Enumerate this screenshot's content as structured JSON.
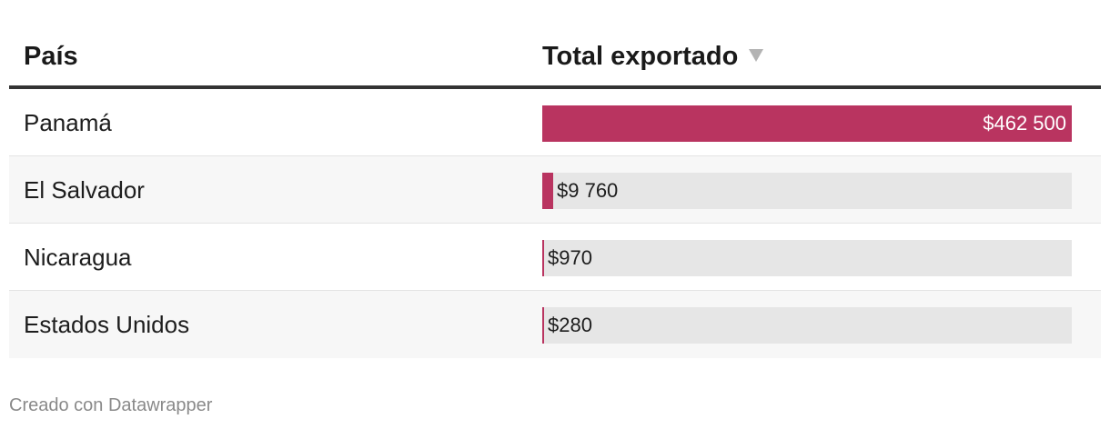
{
  "table": {
    "headers": {
      "country": "País",
      "total": "Total exportado"
    },
    "sort_icon": "sort-descending-icon"
  },
  "colors": {
    "bar": "#b93460",
    "track": "#e6e6e6",
    "label_inside": "#ffffff",
    "label_outside": "#1d1d1d"
  },
  "chart_data": {
    "type": "table",
    "columns": [
      "País",
      "Total exportado"
    ],
    "rows": [
      {
        "country": "Panamá",
        "value": 462500,
        "label": "$462 500"
      },
      {
        "country": "El Salvador",
        "value": 9760,
        "label": "$9 760"
      },
      {
        "country": "Nicaragua",
        "value": 970,
        "label": "$970"
      },
      {
        "country": "Estados Unidos",
        "value": 280,
        "label": "$280"
      }
    ],
    "max_value": 462500
  },
  "footer": {
    "credit": "Creado con Datawrapper"
  }
}
